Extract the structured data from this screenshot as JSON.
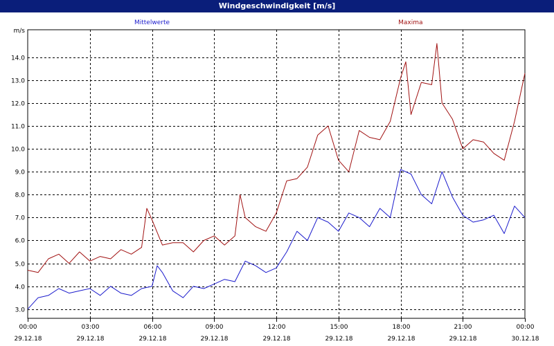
{
  "window": {
    "title": "Windgeschwindigkeit [m/s]"
  },
  "colors": {
    "title_bar": "#0a1e7a",
    "mittelwerte": "#1a1acc",
    "maxima": "#a01010",
    "grid": "#000000"
  },
  "chart_data": {
    "type": "line",
    "title": "Windgeschwindigkeit [m/s]",
    "ylabel": "m/s",
    "xlabel": "",
    "ylim": [
      2.6,
      15.2
    ],
    "y_ticks": [
      "3.0",
      "4.0",
      "5.0",
      "6.0",
      "7.0",
      "8.0",
      "9.0",
      "10.0",
      "11.0",
      "12.0",
      "13.0",
      "14.0"
    ],
    "x_range_hours": [
      0,
      24
    ],
    "x_ticks": [
      {
        "time": "00:00",
        "date": "29.12.18"
      },
      {
        "time": "03:00",
        "date": "29.12.18"
      },
      {
        "time": "06:00",
        "date": "29.12.18"
      },
      {
        "time": "09:00",
        "date": "29.12.18"
      },
      {
        "time": "12:00",
        "date": "29.12.18"
      },
      {
        "time": "15:00",
        "date": "29.12.18"
      },
      {
        "time": "18:00",
        "date": "29.12.18"
      },
      {
        "time": "21:00",
        "date": "29.12.18"
      },
      {
        "time": "00:00",
        "date": "30.12.18"
      }
    ],
    "grid": true,
    "legend_position": "top",
    "series": [
      {
        "name": "Mittelwerte",
        "color": "#1a1acc",
        "x": [
          0,
          0.5,
          1,
          1.5,
          2,
          2.5,
          3,
          3.5,
          4,
          4.5,
          5,
          5.5,
          6,
          6.25,
          6.5,
          7,
          7.5,
          8,
          8.5,
          9,
          9.5,
          10,
          10.5,
          11,
          11.5,
          12,
          12.5,
          13,
          13.5,
          14,
          14.5,
          15,
          15.5,
          16,
          16.5,
          17,
          17.5,
          18,
          18.5,
          19,
          19.5,
          20,
          20.5,
          21,
          21.5,
          22,
          22.5,
          23,
          23.5,
          24
        ],
        "values": [
          3.0,
          3.5,
          3.6,
          3.9,
          3.7,
          3.8,
          3.9,
          3.6,
          4.0,
          3.7,
          3.6,
          3.9,
          4.0,
          4.9,
          4.6,
          3.8,
          3.5,
          4.0,
          3.9,
          4.1,
          4.3,
          4.2,
          5.1,
          4.9,
          4.6,
          4.8,
          5.5,
          6.4,
          6.0,
          7.0,
          6.8,
          6.4,
          7.2,
          7.0,
          6.6,
          7.4,
          7.0,
          9.1,
          8.9,
          8.0,
          7.6,
          9.0,
          7.9,
          7.1,
          6.8,
          6.9,
          7.1,
          6.3,
          7.5,
          7.0
        ]
      },
      {
        "name": "Maxima",
        "color": "#a01010",
        "x": [
          0,
          0.5,
          1,
          1.5,
          2,
          2.5,
          3,
          3.5,
          4,
          4.5,
          5,
          5.5,
          5.75,
          6,
          6.5,
          7,
          7.5,
          8,
          8.5,
          9,
          9.5,
          10,
          10.25,
          10.5,
          11,
          11.5,
          12,
          12.5,
          13,
          13.5,
          14,
          14.5,
          15,
          15.5,
          16,
          16.5,
          17,
          17.5,
          18,
          18.25,
          18.5,
          19,
          19.5,
          19.75,
          20,
          20.5,
          21,
          21.5,
          22,
          22.5,
          23,
          23.5,
          24
        ],
        "values": [
          4.7,
          4.6,
          5.2,
          5.4,
          5.0,
          5.5,
          5.1,
          5.3,
          5.2,
          5.6,
          5.4,
          5.7,
          7.4,
          6.9,
          5.8,
          5.9,
          5.9,
          5.5,
          6.0,
          6.2,
          5.8,
          6.2,
          8.0,
          7.0,
          6.6,
          6.4,
          7.2,
          8.6,
          8.7,
          9.2,
          10.6,
          11.0,
          9.5,
          9.0,
          10.8,
          10.5,
          10.4,
          11.2,
          13.1,
          13.8,
          11.5,
          12.9,
          12.8,
          14.6,
          12.0,
          11.3,
          10.0,
          10.4,
          10.3,
          9.8,
          9.5,
          11.2,
          13.3
        ]
      }
    ]
  }
}
